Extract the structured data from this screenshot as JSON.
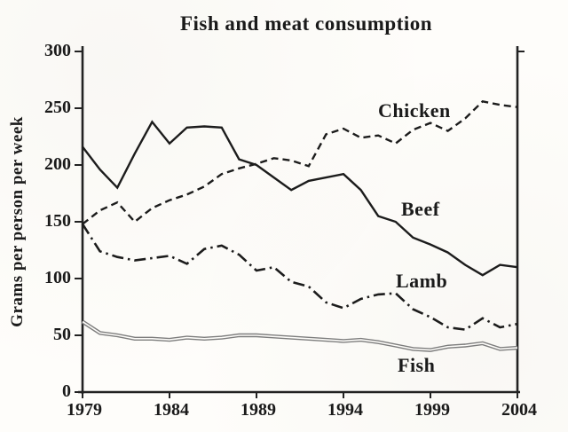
{
  "title": "Fish and meat consumption",
  "y_axis": {
    "label": "Grams per person per week",
    "ticks": [
      300,
      250,
      200,
      150,
      100,
      50,
      0
    ]
  },
  "x_axis": {
    "ticks": [
      "1979",
      "1984",
      "1989",
      "1994",
      "1999",
      "2004"
    ]
  },
  "colors": {
    "ink": "#242424",
    "line": "#1e1e1e",
    "fish_line": "#7d7d7d",
    "paper": "#fcfbf8"
  },
  "chart_data": {
    "type": "line",
    "title": "Fish and meat consumption",
    "xlabel": "",
    "ylabel": "Grams per person per week",
    "ylim": [
      0,
      300
    ],
    "xlim": [
      1979,
      2004
    ],
    "grid": false,
    "legend_position": "labels-next-to-lines",
    "x": [
      1979,
      1980,
      1981,
      1982,
      1983,
      1984,
      1985,
      1986,
      1987,
      1988,
      1989,
      1990,
      1991,
      1992,
      1993,
      1994,
      1995,
      1996,
      1997,
      1998,
      1999,
      2000,
      2001,
      2002,
      2003,
      2004
    ],
    "series": [
      {
        "name": "Chicken",
        "style": "dashed",
        "values": [
          148,
          160,
          167,
          150,
          162,
          169,
          174,
          181,
          192,
          197,
          201,
          206,
          204,
          199,
          227,
          232,
          224,
          226,
          219,
          231,
          237,
          230,
          241,
          256,
          253,
          251
        ]
      },
      {
        "name": "Beef",
        "style": "solid",
        "values": [
          216,
          196,
          180,
          210,
          238,
          219,
          233,
          234,
          233,
          205,
          200,
          189,
          178,
          186,
          189,
          192,
          178,
          155,
          150,
          136,
          130,
          123,
          112,
          103,
          112,
          110
        ]
      },
      {
        "name": "Lamb",
        "style": "dashdot",
        "values": [
          148,
          124,
          119,
          116,
          118,
          120,
          113,
          126,
          129,
          121,
          107,
          110,
          97,
          93,
          79,
          74,
          82,
          86,
          87,
          73,
          66,
          57,
          55,
          65,
          57,
          60
        ]
      },
      {
        "name": "Fish",
        "style": "double",
        "values": [
          62,
          52,
          50,
          47,
          47,
          46,
          48,
          47,
          48,
          50,
          50,
          49,
          48,
          47,
          46,
          45,
          46,
          44,
          41,
          38,
          37,
          40,
          41,
          43,
          38,
          39
        ]
      }
    ]
  }
}
